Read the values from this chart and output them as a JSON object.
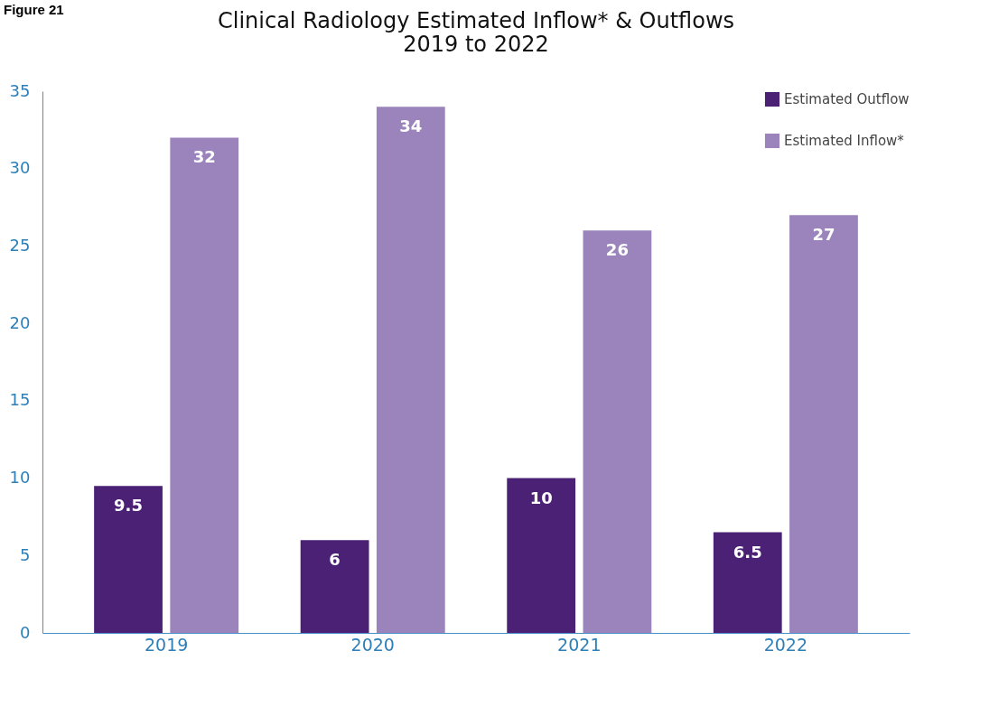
{
  "chart_data": {
    "type": "bar",
    "title": "Clinical Radiology Estimated Inflow* & Outflows",
    "subtitle": "2019 to 2022",
    "annotations": [
      "Figure 21"
    ],
    "categories": [
      "2019",
      "2020",
      "2021",
      "2022"
    ],
    "series": [
      {
        "name": "Estimated Outflow",
        "color": "#4a2174",
        "values": [
          9.5,
          6,
          10,
          6.5
        ]
      },
      {
        "name": "Estimated Inflow*",
        "color": "#9b84bc",
        "values": [
          32,
          34,
          26,
          27
        ]
      }
    ],
    "ylim": [
      0,
      35
    ],
    "yticks": [
      0,
      5,
      10,
      15,
      20,
      25,
      30,
      35
    ],
    "grid": false,
    "legend": "top right",
    "data_labels": true
  }
}
